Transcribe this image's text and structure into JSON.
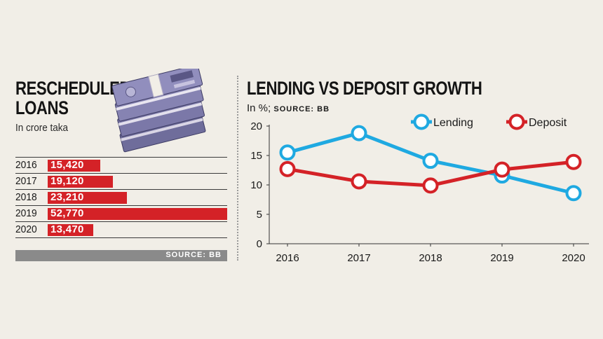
{
  "left_panel": {
    "title_line1": "RESCHEDULED",
    "title_line2": "LOANS",
    "subtitle": "In crore taka",
    "source": "SOURCE: BB",
    "rows": [
      {
        "year": "2016",
        "value_label": "15,420",
        "value": 15420
      },
      {
        "year": "2017",
        "value_label": "19,120",
        "value": 19120
      },
      {
        "year": "2018",
        "value_label": "23,210",
        "value": 23210
      },
      {
        "year": "2019",
        "value_label": "52,770",
        "value": 52770
      },
      {
        "year": "2020",
        "value_label": "13,470",
        "value": 13470
      }
    ],
    "bar_color": "#d42227"
  },
  "right_panel": {
    "title": "LENDING VS DEPOSIT GROWTH",
    "unit": "In %;",
    "source": "SOURCE: BB"
  },
  "chart_data": [
    {
      "type": "bar",
      "orientation": "horizontal",
      "title": "RESCHEDULED LOANS",
      "subtitle": "In crore taka",
      "categories": [
        "2016",
        "2017",
        "2018",
        "2019",
        "2020"
      ],
      "values": [
        15420,
        19120,
        23210,
        52770,
        13470
      ],
      "xlim": [
        0,
        52770
      ]
    },
    {
      "type": "line",
      "title": "LENDING VS DEPOSIT GROWTH",
      "ylabel": "In %",
      "x": [
        "2016",
        "2017",
        "2018",
        "2019",
        "2020"
      ],
      "ylim": [
        0,
        20
      ],
      "yticks": [
        0,
        5,
        10,
        15,
        20
      ],
      "grid": false,
      "legend": "top-right",
      "series": [
        {
          "name": "Lending",
          "color": "#1fa9e1",
          "values": [
            15.5,
            18.8,
            14.1,
            11.6,
            8.6
          ]
        },
        {
          "name": "Deposit",
          "color": "#d42227",
          "values": [
            12.7,
            10.6,
            9.9,
            12.6,
            13.9
          ]
        }
      ]
    }
  ]
}
